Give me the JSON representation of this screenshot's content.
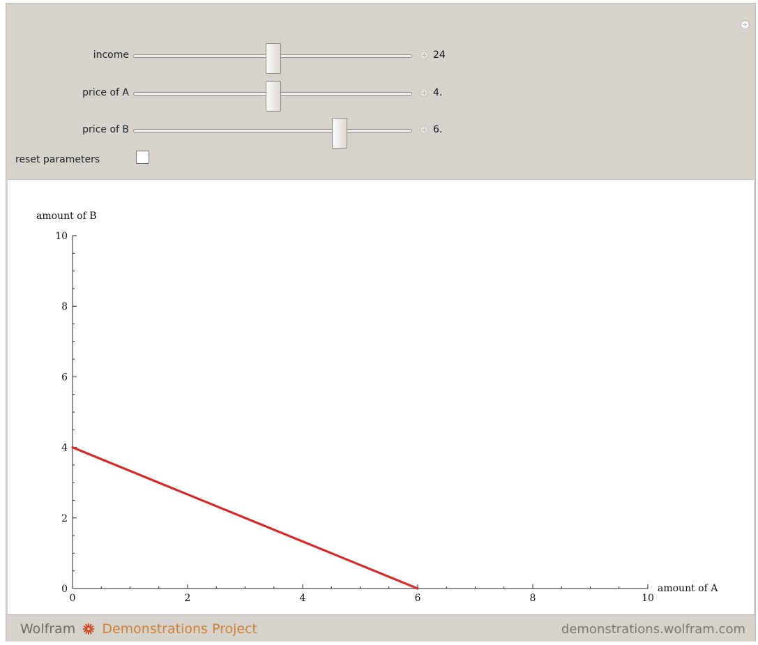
{
  "controls": [
    {
      "label": "income",
      "value": "24",
      "fraction": 0.5
    },
    {
      "label": "price of A",
      "value": "4.",
      "fraction": 0.5
    },
    {
      "label": "price of B",
      "value": "6.",
      "fraction": 0.75
    }
  ],
  "reset": {
    "label": "reset parameters",
    "checked": false
  },
  "chart_data": {
    "type": "line",
    "xlabel": "amount of A",
    "ylabel": "amount of B",
    "xlim": [
      0,
      10
    ],
    "ylim": [
      0,
      10
    ],
    "x_ticks": [
      0,
      2,
      4,
      6,
      8,
      10
    ],
    "y_ticks": [
      0,
      2,
      4,
      6,
      8,
      10
    ],
    "x_tick_labels": [
      "0",
      "2",
      "4",
      "6",
      "8",
      "10"
    ],
    "y_tick_labels": [
      "0",
      "2",
      "4",
      "6",
      "8",
      "10"
    ],
    "series": [
      {
        "points": [
          [
            0,
            4
          ],
          [
            6,
            0
          ]
        ],
        "color": "#d42a2a"
      }
    ]
  },
  "footer": {
    "brand_wolfram": "Wolfram",
    "brand_project": "Demonstrations Project",
    "site": "demonstrations.wolfram.com",
    "gear_color": "#cf4b2b"
  }
}
